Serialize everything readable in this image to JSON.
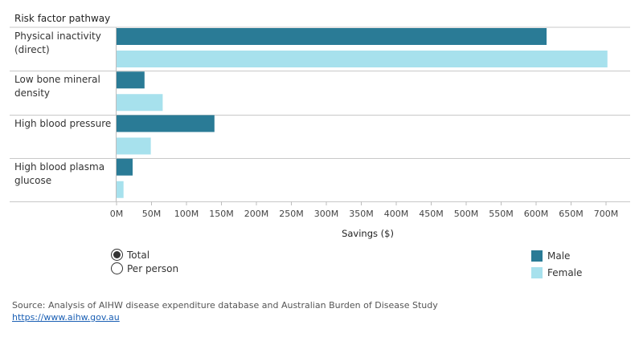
{
  "chart_data": {
    "type": "bar",
    "orientation": "horizontal",
    "category_header": "Risk factor pathway",
    "categories": [
      "Physical inactivity (direct)",
      "Low bone mineral density",
      "High blood pressure",
      "High blood plasma glucose"
    ],
    "category_label_lines": [
      [
        "Physical inactivity",
        "(direct)"
      ],
      [
        "Low bone mineral",
        "density"
      ],
      [
        "High blood pressure"
      ],
      [
        "High blood plasma",
        "glucose"
      ]
    ],
    "series": [
      {
        "name": "Male",
        "color": "#2a7b96",
        "values": [
          615,
          40,
          140,
          23
        ]
      },
      {
        "name": "Female",
        "color": "#a7e1ed",
        "values": [
          702,
          66,
          49,
          10
        ]
      }
    ],
    "xlabel": "Savings ($)",
    "xlim": [
      0,
      700
    ],
    "x_ticks": [
      0,
      50,
      100,
      150,
      200,
      250,
      300,
      350,
      400,
      450,
      500,
      550,
      600,
      650,
      700
    ],
    "x_tick_labels": [
      "0M",
      "50M",
      "100M",
      "150M",
      "200M",
      "250M",
      "300M",
      "350M",
      "400M",
      "450M",
      "500M",
      "550M",
      "600M",
      "650M",
      "700M"
    ],
    "legend_position": "bottom-right",
    "grid": false
  },
  "controls": {
    "options": [
      {
        "label": "Total",
        "selected": true
      },
      {
        "label": "Per person",
        "selected": false
      }
    ]
  },
  "legend": {
    "items": [
      {
        "label": "Male",
        "color": "#2a7b96"
      },
      {
        "label": "Female",
        "color": "#a7e1ed"
      }
    ]
  },
  "source": {
    "text": "Source: Analysis of AIHW disease expenditure database and Australian Burden of Disease Study",
    "link": "https://www.aihw.gov.au"
  }
}
